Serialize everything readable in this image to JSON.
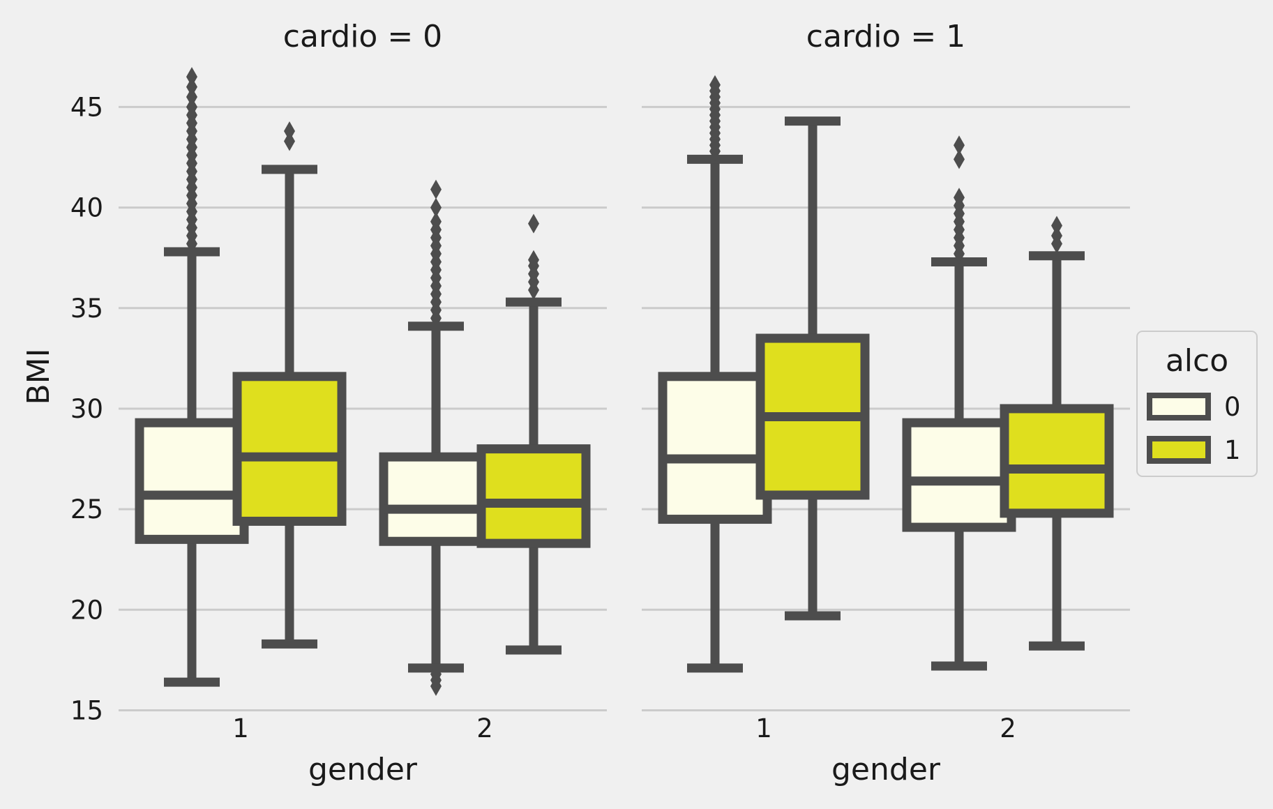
{
  "chart_data": {
    "type": "box",
    "facet_variable": "cardio",
    "panels": [
      {
        "title": "cardio = 0",
        "xlabel": "gender",
        "categories": [
          "1",
          "2"
        ],
        "groups": [
          {
            "gender": "1",
            "alco": "0",
            "whisker_low": 16.4,
            "q1": 23.5,
            "median": 25.7,
            "q3": 29.3,
            "whisker_high": 37.8,
            "outliers": [
              38.2,
              38.6,
              39.0,
              39.4,
              39.8,
              40.2,
              40.6,
              41.0,
              41.4,
              41.8,
              42.2,
              42.6,
              43.0,
              43.4,
              43.8,
              44.2,
              44.6,
              45.0,
              45.5,
              46.0,
              46.5
            ]
          },
          {
            "gender": "1",
            "alco": "1",
            "whisker_low": 18.3,
            "q1": 24.4,
            "median": 27.6,
            "q3": 31.6,
            "whisker_high": 41.9,
            "outliers": [
              43.3,
              43.8
            ]
          },
          {
            "gender": "2",
            "alco": "0",
            "whisker_low": 17.1,
            "q1": 23.4,
            "median": 25.0,
            "q3": 27.6,
            "whisker_high": 34.1,
            "outliers": [
              16.8,
              16.5,
              16.2,
              34.5,
              34.9,
              35.3,
              35.7,
              36.1,
              36.5,
              36.9,
              37.3,
              37.7,
              38.1,
              38.5,
              38.9,
              39.3,
              40.0,
              40.9
            ]
          },
          {
            "gender": "2",
            "alco": "1",
            "whisker_low": 18.0,
            "q1": 23.3,
            "median": 25.3,
            "q3": 28.0,
            "whisker_high": 35.3,
            "outliers": [
              35.9,
              36.3,
              36.7,
              37.1,
              37.4,
              39.2
            ]
          }
        ]
      },
      {
        "title": "cardio = 1",
        "xlabel": "gender",
        "categories": [
          "1",
          "2"
        ],
        "groups": [
          {
            "gender": "1",
            "alco": "0",
            "whisker_low": 17.1,
            "q1": 24.5,
            "median": 27.5,
            "q3": 31.6,
            "whisker_high": 42.4,
            "outliers": [
              42.8,
              43.1,
              43.4,
              43.7,
              44.0,
              44.3,
              44.6,
              44.9,
              45.2,
              45.5,
              45.8,
              46.1
            ]
          },
          {
            "gender": "1",
            "alco": "1",
            "whisker_low": 19.7,
            "q1": 25.7,
            "median": 29.6,
            "q3": 33.5,
            "whisker_high": 44.3,
            "outliers": []
          },
          {
            "gender": "2",
            "alco": "0",
            "whisker_low": 17.2,
            "q1": 24.1,
            "median": 26.4,
            "q3": 29.3,
            "whisker_high": 37.3,
            "outliers": [
              37.7,
              38.1,
              38.5,
              38.9,
              39.3,
              39.7,
              40.1,
              40.5,
              42.4,
              43.1
            ]
          },
          {
            "gender": "2",
            "alco": "1",
            "whisker_low": 18.2,
            "q1": 24.8,
            "median": 27.0,
            "q3": 30.0,
            "whisker_high": 37.6,
            "outliers": [
              38.2,
              38.6,
              39.1
            ]
          }
        ]
      }
    ],
    "ylabel": "BMI",
    "ylim": [
      14.6,
      47.2
    ],
    "yticks": [
      15,
      20,
      25,
      30,
      35,
      40,
      45
    ],
    "grid": "horizontal",
    "legend": {
      "title": "alco",
      "placement": "right",
      "entries": [
        {
          "label": "0",
          "color": "#fdfde8"
        },
        {
          "label": "1",
          "color": "#dfdf1e"
        }
      ]
    },
    "colors": {
      "alco_0": "#fdfde8",
      "alco_1": "#dfdf1e",
      "line": "#4d4d4d",
      "grid": "#cbcbcb",
      "background": "#f0f0f0"
    }
  }
}
